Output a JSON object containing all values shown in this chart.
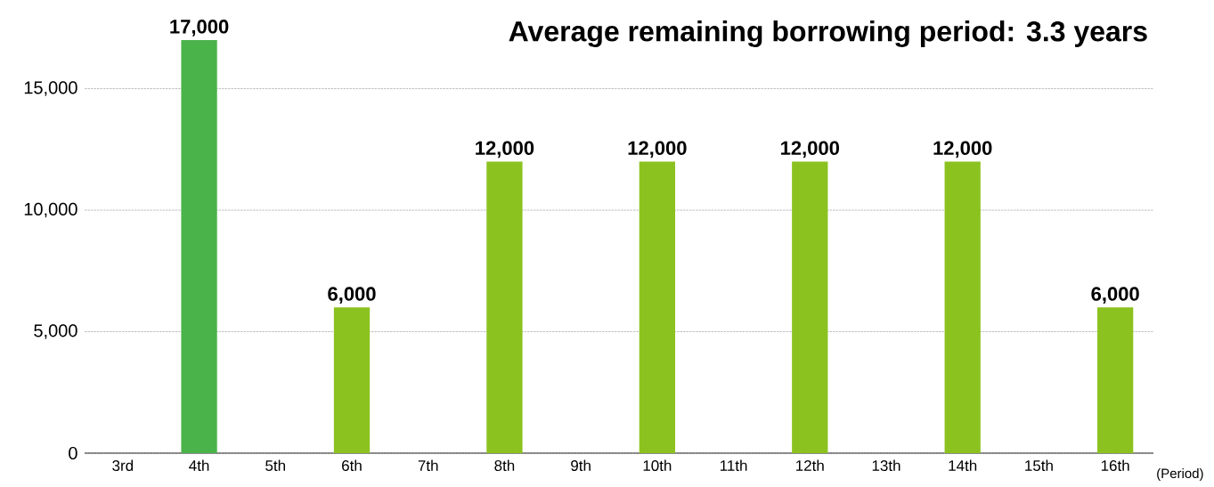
{
  "chart_data": {
    "type": "bar",
    "title": "Average remaining borrowing period: 3.3 years",
    "xlabel": "(Period)",
    "categories": [
      "3rd",
      "4th",
      "5th",
      "6th",
      "7th",
      "8th",
      "9th",
      "10th",
      "11th",
      "12th",
      "13th",
      "14th",
      "15th",
      "16th"
    ],
    "values": [
      0,
      17000,
      0,
      6000,
      0,
      12000,
      0,
      12000,
      0,
      12000,
      0,
      12000,
      0,
      6000
    ],
    "value_labels": [
      null,
      "17,000",
      null,
      "6,000",
      null,
      "12,000",
      null,
      "12,000",
      null,
      "12,000",
      null,
      "12,000",
      null,
      "6,000"
    ],
    "colors": [
      "#8cc21f",
      "#4ab34a",
      "#8cc21f",
      "#8cc21f",
      "#8cc21f",
      "#8cc21f",
      "#8cc21f",
      "#8cc21f",
      "#8cc21f",
      "#8cc21f",
      "#8cc21f",
      "#8cc21f",
      "#8cc21f",
      "#8cc21f"
    ],
    "ylim": [
      0,
      17000
    ],
    "yticks": [
      {
        "value": 0,
        "label": "0"
      },
      {
        "value": 5000,
        "label": "5,000"
      },
      {
        "value": 10000,
        "label": "10,000"
      },
      {
        "value": 15000,
        "label": "15,000"
      }
    ],
    "grid": "y"
  }
}
